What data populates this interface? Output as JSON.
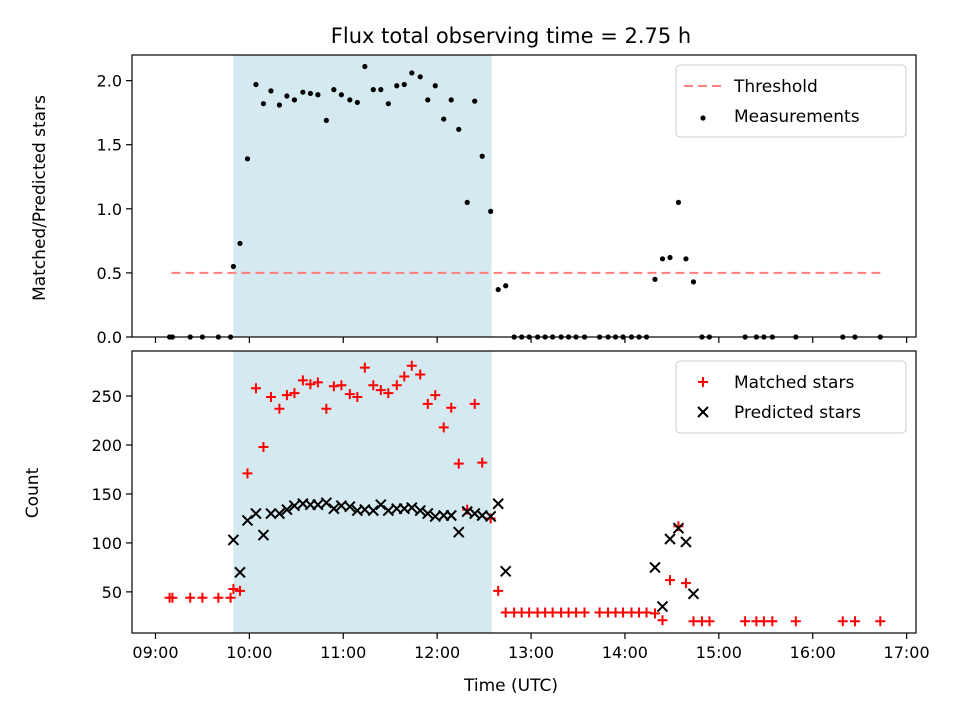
{
  "chart_data": {
    "type": "scatter",
    "title": "Flux total observing time = 2.75 h",
    "xlabel": "Time (UTC)",
    "x_unit": "hours UTC",
    "xlim": [
      8.75,
      17.1
    ],
    "xticks": [
      {
        "value": 9,
        "label": "09:00"
      },
      {
        "value": 10,
        "label": "10:00"
      },
      {
        "value": 11,
        "label": "11:00"
      },
      {
        "value": 12,
        "label": "12:00"
      },
      {
        "value": 13,
        "label": "13:00"
      },
      {
        "value": 14,
        "label": "14:00"
      },
      {
        "value": 15,
        "label": "15:00"
      },
      {
        "value": 16,
        "label": "16:00"
      },
      {
        "value": 17,
        "label": "17:00"
      }
    ],
    "shaded_span": {
      "x0": 9.83,
      "x1": 12.58,
      "color": "#d4eaf0"
    },
    "panels": [
      {
        "name": "ratio",
        "ylabel": "Matched/Predicted stars",
        "ylim": [
          0,
          2.2
        ],
        "yticks": [
          {
            "value": 0,
            "label": "0.0"
          },
          {
            "value": 0.5,
            "label": "0.5"
          },
          {
            "value": 1,
            "label": "1.0"
          },
          {
            "value": 1.5,
            "label": "1.5"
          },
          {
            "value": 2,
            "label": "2.0"
          }
        ],
        "legend": {
          "placement": "top-right",
          "entries": [
            {
              "label": "Threshold",
              "marker": "dashed-line",
              "color": "#ff7f7f"
            },
            {
              "label": "Measurements",
              "marker": "dot",
              "color": "#000000"
            }
          ]
        },
        "threshold": {
          "name": "Threshold",
          "y": 0.5,
          "x": [
            9.17,
            16.72
          ],
          "color": "#ff7f7f"
        },
        "series": [
          {
            "name": "Measurements",
            "marker": "dot",
            "color": "#000000",
            "x": [
              9.15,
              9.18,
              9.37,
              9.5,
              9.67,
              9.8,
              9.83,
              9.9,
              9.98,
              10.07,
              10.15,
              10.23,
              10.32,
              10.4,
              10.48,
              10.57,
              10.65,
              10.73,
              10.82,
              10.9,
              10.98,
              11.07,
              11.15,
              11.23,
              11.32,
              11.4,
              11.48,
              11.57,
              11.65,
              11.73,
              11.82,
              11.9,
              11.98,
              12.07,
              12.15,
              12.23,
              12.32,
              12.4,
              12.48,
              12.57,
              12.65,
              12.73,
              12.82,
              12.9,
              12.98,
              13.07,
              13.15,
              13.23,
              13.32,
              13.4,
              13.48,
              13.57,
              13.73,
              13.82,
              13.9,
              13.98,
              14.07,
              14.15,
              14.23,
              14.32,
              14.4,
              14.48,
              14.57,
              14.65,
              14.73,
              14.82,
              14.9,
              15.28,
              15.4,
              15.48,
              15.57,
              15.82,
              16.32,
              16.45,
              16.72
            ],
            "y": [
              0,
              0,
              0,
              0,
              0,
              0,
              0.55,
              0.73,
              1.39,
              1.97,
              1.82,
              1.92,
              1.81,
              1.88,
              1.85,
              1.91,
              1.9,
              1.89,
              1.69,
              1.93,
              1.89,
              1.85,
              1.83,
              2.11,
              1.93,
              1.93,
              1.82,
              1.96,
              1.97,
              2.06,
              2.03,
              1.85,
              1.96,
              1.7,
              1.85,
              1.62,
              1.05,
              1.84,
              1.41,
              0.98,
              0.37,
              0.4,
              0,
              0,
              0,
              0,
              0,
              0,
              0,
              0,
              0,
              0,
              0,
              0,
              0,
              0,
              0,
              0,
              0,
              0.45,
              0.61,
              0.62,
              1.05,
              0.61,
              0.43,
              0,
              0,
              0,
              0,
              0,
              0,
              0,
              0,
              0,
              0
            ]
          }
        ]
      },
      {
        "name": "counts",
        "ylabel": "Count",
        "ylim": [
          8,
          296
        ],
        "yticks": [
          {
            "value": 50,
            "label": "50"
          },
          {
            "value": 100,
            "label": "100"
          },
          {
            "value": 150,
            "label": "150"
          },
          {
            "value": 200,
            "label": "200"
          },
          {
            "value": 250,
            "label": "250"
          }
        ],
        "legend": {
          "placement": "top-right",
          "entries": [
            {
              "label": "Matched stars",
              "marker": "plus",
              "color": "#ff0000"
            },
            {
              "label": "Predicted stars",
              "marker": "x",
              "color": "#000000"
            }
          ]
        },
        "series": [
          {
            "name": "Matched stars",
            "marker": "plus",
            "color": "#ff0000",
            "x": [
              9.15,
              9.18,
              9.37,
              9.5,
              9.67,
              9.8,
              9.83,
              9.9,
              9.98,
              10.07,
              10.15,
              10.23,
              10.32,
              10.4,
              10.48,
              10.57,
              10.65,
              10.73,
              10.82,
              10.9,
              10.98,
              11.07,
              11.15,
              11.23,
              11.32,
              11.4,
              11.48,
              11.57,
              11.65,
              11.73,
              11.82,
              11.9,
              11.98,
              12.07,
              12.15,
              12.23,
              12.32,
              12.4,
              12.48,
              12.57,
              12.65,
              12.73,
              12.82,
              12.9,
              12.98,
              13.07,
              13.15,
              13.23,
              13.32,
              13.4,
              13.48,
              13.57,
              13.73,
              13.82,
              13.9,
              13.98,
              14.07,
              14.15,
              14.23,
              14.32,
              14.4,
              14.48,
              14.57,
              14.65,
              14.73,
              14.82,
              14.9,
              15.28,
              15.4,
              15.48,
              15.57,
              15.82,
              16.32,
              16.45,
              16.72
            ],
            "y": [
              44,
              44,
              44,
              44,
              44,
              44,
              53,
              51,
              171,
              258,
              198,
              249,
              237,
              251,
              253,
              266,
              262,
              264,
              237,
              260,
              261,
              252,
              249,
              279,
              261,
              256,
              253,
              261,
              270,
              281,
              272,
              242,
              251,
              218,
              238,
              181,
              134,
              242,
              182,
              125,
              51,
              29,
              29,
              29,
              29,
              29,
              29,
              29,
              29,
              29,
              29,
              29,
              29,
              29,
              29,
              29,
              29,
              29,
              29,
              28,
              21,
              62,
              117,
              59,
              20,
              20,
              20,
              20,
              20,
              20,
              20,
              20,
              20,
              20,
              20
            ]
          },
          {
            "name": "Predicted stars",
            "marker": "x",
            "color": "#000000",
            "x": [
              9.83,
              9.9,
              9.98,
              10.07,
              10.15,
              10.23,
              10.32,
              10.4,
              10.48,
              10.57,
              10.65,
              10.73,
              10.82,
              10.9,
              10.98,
              11.07,
              11.15,
              11.23,
              11.32,
              11.4,
              11.48,
              11.57,
              11.65,
              11.73,
              11.82,
              11.9,
              11.98,
              12.07,
              12.15,
              12.23,
              12.32,
              12.4,
              12.48,
              12.57,
              12.65,
              12.73,
              14.32,
              14.4,
              14.48,
              14.57,
              14.65,
              14.73
            ],
            "y": [
              103,
              70,
              123,
              130,
              108,
              130,
              130,
              134,
              138,
              140,
              139,
              139,
              141,
              135,
              138,
              137,
              133,
              134,
              133,
              139,
              133,
              135,
              135,
              136,
              133,
              130,
              127,
              128,
              128,
              111,
              132,
              130,
              128,
              127,
              140,
              71,
              75,
              35,
              104,
              115,
              101,
              48
            ]
          }
        ]
      }
    ]
  }
}
